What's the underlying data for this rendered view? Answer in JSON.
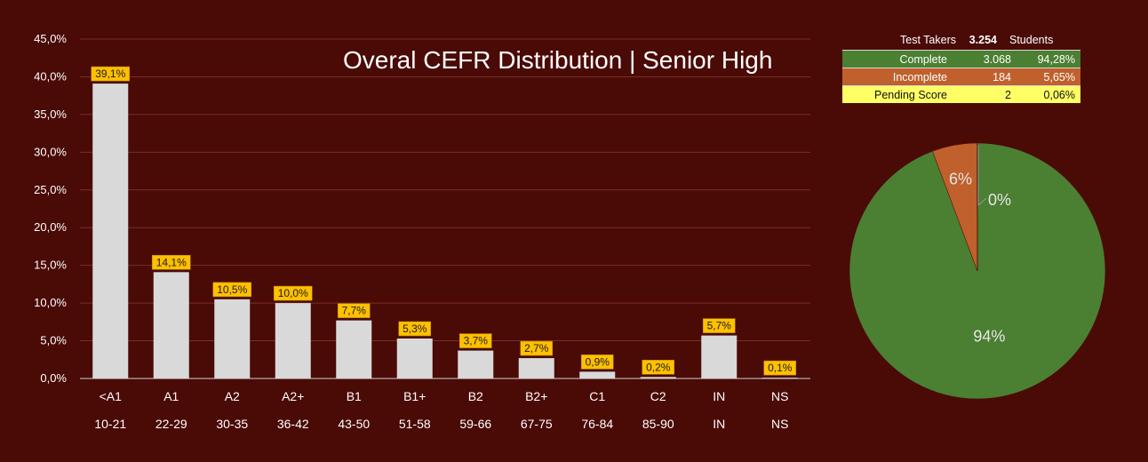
{
  "chart_data": [
    {
      "type": "bar",
      "title": "Overal CEFR Distribution | Senior High",
      "categories": [
        "<A1",
        "A1",
        "A2",
        "A2+",
        "B1",
        "B1+",
        "B2",
        "B2+",
        "C1",
        "C2",
        "IN",
        "NS"
      ],
      "ranges": [
        "10-21",
        "22-29",
        "30-35",
        "36-42",
        "43-50",
        "51-58",
        "59-66",
        "67-75",
        "76-84",
        "85-90",
        "IN",
        "NS"
      ],
      "values": [
        39.1,
        14.1,
        10.5,
        10.0,
        7.7,
        5.3,
        3.7,
        2.7,
        0.9,
        0.2,
        5.7,
        0.1
      ],
      "data_labels": [
        "39,1%",
        "14,1%",
        "10,5%",
        "10,0%",
        "7,7%",
        "5,3%",
        "3,7%",
        "2,7%",
        "0,9%",
        "0,2%",
        "5,7%",
        "0,1%"
      ],
      "yticks": [
        "0,0%",
        "5,0%",
        "10,0%",
        "15,0%",
        "20,0%",
        "25,0%",
        "30,0%",
        "35,0%",
        "40,0%",
        "45,0%"
      ],
      "ylim": [
        0,
        45
      ],
      "grid": true,
      "bar_color": "#d9d9d9",
      "label_bg": "#ffc000"
    },
    {
      "type": "pie",
      "slices": [
        {
          "label": "94%",
          "value": 94.28,
          "color": "#4b7f32"
        },
        {
          "label": "6%",
          "value": 5.65,
          "color": "#c0602c"
        },
        {
          "label": "0%",
          "value": 0.06,
          "color": "#ffff66"
        }
      ]
    }
  ],
  "summary": {
    "header": {
      "label": "Test Takers",
      "value": "3.254",
      "unit": "Students"
    },
    "rows": [
      {
        "label": "Complete",
        "count": "3.068",
        "pct": "94,28%"
      },
      {
        "label": "Incomplete",
        "count": "184",
        "pct": "5,65%"
      },
      {
        "label": "Pending Score",
        "count": "2",
        "pct": "0,06%"
      }
    ]
  }
}
